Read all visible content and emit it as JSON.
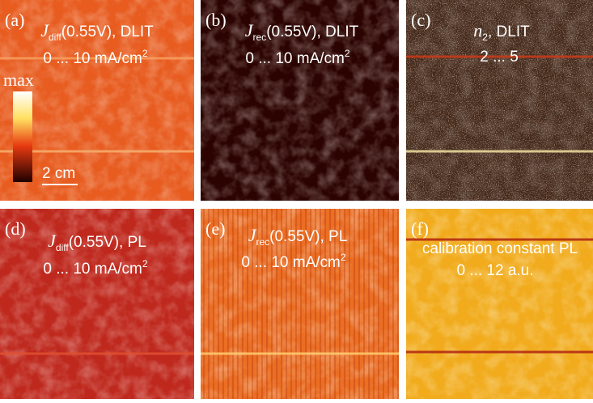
{
  "panels": [
    {
      "label": "(a)",
      "symbol": "J",
      "subscript": "diff",
      "title": "(0.55V), DLIT",
      "range": "0 ... 10 mA/cm",
      "range_sup": "2"
    },
    {
      "label": "(b)",
      "symbol": "J",
      "subscript": "rec",
      "title": "(0.55V), DLIT",
      "range": "0 ... 10 mA/cm",
      "range_sup": "2"
    },
    {
      "label": "(c)",
      "symbol": "n",
      "subscript": "2",
      "title": ", DLIT",
      "range": "2 ... 5"
    },
    {
      "label": "(d)",
      "symbol": "J",
      "subscript": "diff",
      "title": "(0.55V), PL",
      "range": "0 ... 10 mA/cm",
      "range_sup": "2"
    },
    {
      "label": "(e)",
      "symbol": "J",
      "subscript": "rec",
      "title": "(0.55V), PL",
      "range": "0 ... 10 mA/cm",
      "range_sup": "2"
    },
    {
      "label": "(f)",
      "title": "calibration constant PL",
      "range": "0 ... 12 a.u."
    }
  ],
  "colorbar": {
    "max": "max"
  },
  "scale_bar": "2 cm"
}
